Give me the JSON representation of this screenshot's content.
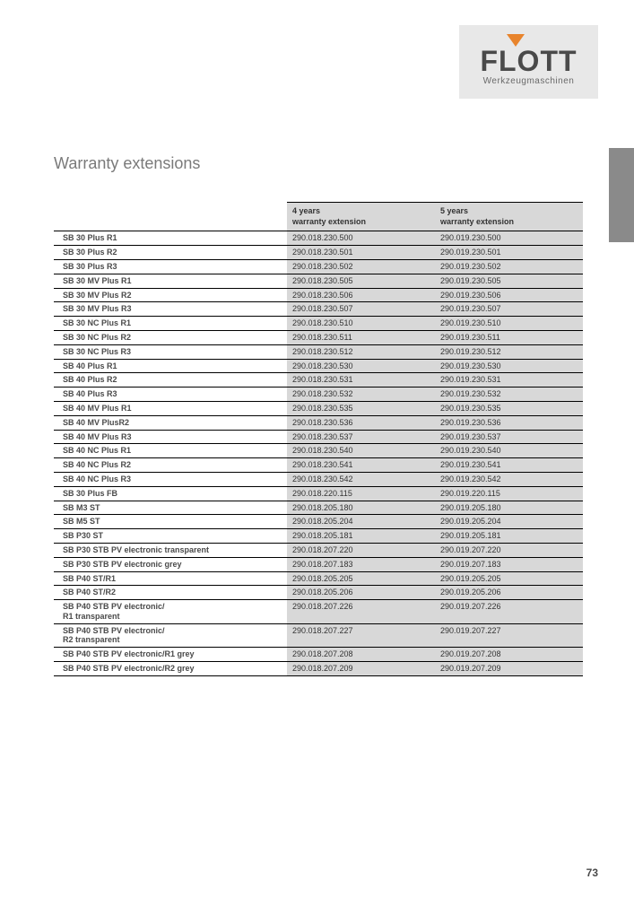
{
  "logo": {
    "main": "FLOTT",
    "sub": "Werkzeugmaschinen"
  },
  "title": "Warranty extensions",
  "headers": {
    "col1_l1": "4 years",
    "col1_l2": "warranty extension",
    "col2_l1": "5 years",
    "col2_l2": "warranty extension"
  },
  "rows": [
    {
      "name": "SB 30 Plus R1",
      "c1": "290.018.230.500",
      "c2": "290.019.230.500"
    },
    {
      "name": "SB 30 Plus R2",
      "c1": "290.018.230.501",
      "c2": "290.019.230.501"
    },
    {
      "name": "SB 30 Plus R3",
      "c1": "290.018.230.502",
      "c2": "290.019.230.502"
    },
    {
      "name": "SB 30 MV Plus R1",
      "c1": "290.018.230.505",
      "c2": "290.019.230.505"
    },
    {
      "name": "SB 30 MV Plus R2",
      "c1": "290.018.230.506",
      "c2": "290.019.230.506"
    },
    {
      "name": "SB 30 MV Plus R3",
      "c1": "290.018.230.507",
      "c2": "290.019.230.507"
    },
    {
      "name": "SB 30 NC Plus R1",
      "c1": "290.018.230.510",
      "c2": "290.019.230.510"
    },
    {
      "name": "SB 30 NC Plus R2",
      "c1": "290.018.230.511",
      "c2": "290.019.230.511"
    },
    {
      "name": "SB 30 NC Plus R3",
      "c1": "290.018.230.512",
      "c2": "290.019.230.512"
    },
    {
      "name": "SB 40 Plus R1",
      "c1": "290.018.230.530",
      "c2": "290.019.230.530"
    },
    {
      "name": "SB 40 Plus R2",
      "c1": "290.018.230.531",
      "c2": "290.019.230.531"
    },
    {
      "name": "SB 40 Plus R3",
      "c1": "290.018.230.532",
      "c2": "290.019.230.532"
    },
    {
      "name": "SB 40 MV Plus R1",
      "c1": "290.018.230.535",
      "c2": "290.019.230.535"
    },
    {
      "name": "SB 40 MV PlusR2",
      "c1": "290.018.230.536",
      "c2": "290.019.230.536"
    },
    {
      "name": "SB 40 MV Plus R3",
      "c1": "290.018.230.537",
      "c2": "290.019.230.537"
    },
    {
      "name": "SB 40 NC Plus R1",
      "c1": "290.018.230.540",
      "c2": "290.019.230.540"
    },
    {
      "name": "SB 40 NC Plus R2",
      "c1": "290.018.230.541",
      "c2": "290.019.230.541"
    },
    {
      "name": "SB 40 NC Plus R3",
      "c1": "290.018.230.542",
      "c2": "290.019.230.542"
    },
    {
      "name": "SB 30 Plus FB",
      "c1": "290.018.220.115",
      "c2": "290.019.220.115"
    },
    {
      "name": "SB M3 ST",
      "c1": "290.018.205.180",
      "c2": "290.019.205.180"
    },
    {
      "name": "SB M5 ST",
      "c1": "290.018.205.204",
      "c2": "290.019.205.204"
    },
    {
      "name": "SB P30 ST",
      "c1": "290.018.205.181",
      "c2": "290.019.205.181"
    },
    {
      "name": "SB P30 STB PV electronic transparent",
      "c1": "290.018.207.220",
      "c2": "290.019.207.220"
    },
    {
      "name": "SB P30 STB PV electronic grey",
      "c1": "290.018.207.183",
      "c2": "290.019.207.183"
    },
    {
      "name": "SB P40 ST/R1",
      "c1": "290.018.205.205",
      "c2": "290.019.205.205"
    },
    {
      "name": "SB P40 ST/R2",
      "c1": "290.018.205.206",
      "c2": "290.019.205.206"
    },
    {
      "name": "SB P40 STB PV electronic/\nR1 transparent",
      "c1": "290.018.207.226",
      "c2": "290.019.207.226"
    },
    {
      "name": "SB P40 STB PV electronic/\nR2 transparent",
      "c1": "290.018.207.227",
      "c2": "290.019.207.227"
    },
    {
      "name": "SB P40 STB PV electronic/R1 grey",
      "c1": "290.018.207.208",
      "c2": "290.019.207.208"
    },
    {
      "name": "SB P40 STB PV electronic/R2 grey",
      "c1": "290.018.207.209",
      "c2": "290.019.207.209"
    }
  ],
  "page_number": "73"
}
